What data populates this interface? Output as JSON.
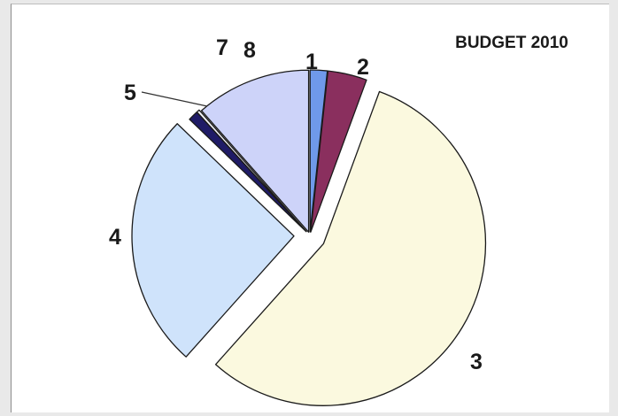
{
  "chart_data": {
    "type": "pie",
    "title": "BUDGET 2010",
    "slices": [
      {
        "label": "1",
        "value": 1.7,
        "color": "#6f99ea",
        "explode": 4
      },
      {
        "label": "2",
        "value": 3.9,
        "color": "#8a2f5e",
        "explode": 4
      },
      {
        "label": "3",
        "value": 56.0,
        "color": "#fbf9df",
        "explode": 18
      },
      {
        "label": "4",
        "value": 25.6,
        "color": "#cfe3fb",
        "explode": 18
      },
      {
        "label": "5",
        "value": 1.0,
        "color": "#1f1b66",
        "explode": 6
      },
      {
        "label": "7",
        "value": 0.3,
        "color": "#f2f2f8",
        "explode": 6
      },
      {
        "label": "8",
        "value": 11.5,
        "color": "#cdd3f9",
        "explode": 4
      }
    ],
    "legend": "none",
    "start_angle_deg": 0
  }
}
